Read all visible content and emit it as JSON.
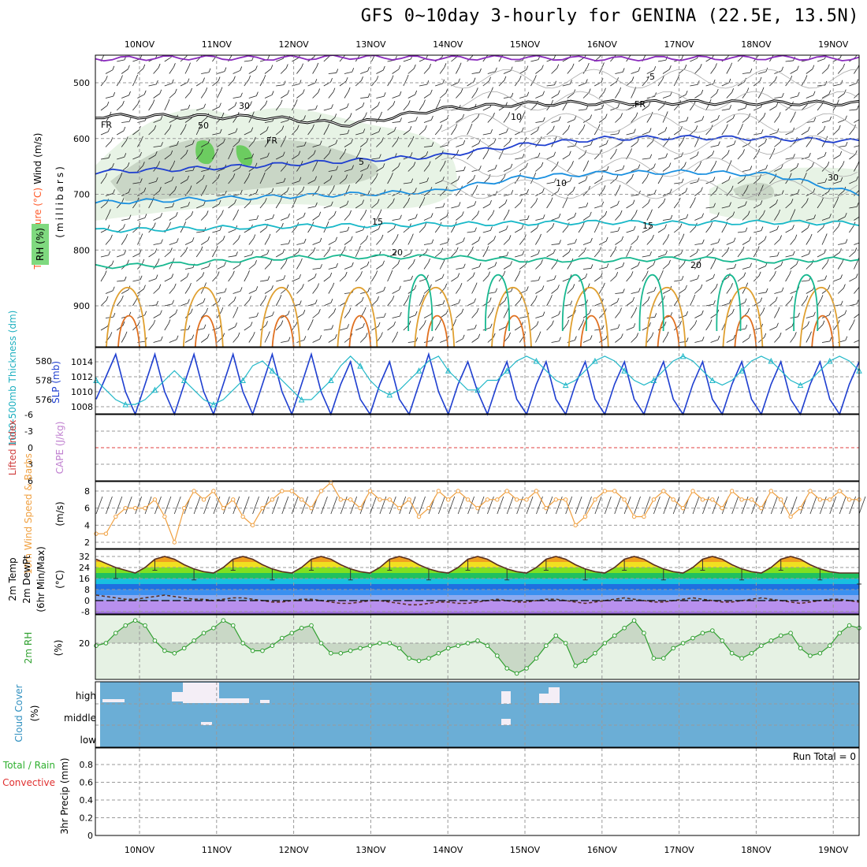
{
  "title": "GFS 0~10day 3-hourly for GENINA (22.5E, 13.5N)",
  "chart_data": {
    "type": "meteogram",
    "dates": [
      "10NOV",
      "11NOV",
      "12NOV",
      "13NOV",
      "14NOV",
      "15NOV",
      "16NOV",
      "17NOV",
      "18NOV",
      "19NOV"
    ],
    "panels": {
      "upper_air": {
        "label_wind": "Wind (m/s)",
        "label_temp": "Temperature (°C)",
        "label_rh": "RH (%)",
        "label_axis": "(millibars)",
        "pressure_ticks": [
          500,
          600,
          700,
          800,
          900
        ],
        "ylim": [
          1000,
          450
        ],
        "isotherm_labels": [
          "-5",
          "5",
          "10",
          "15",
          "20"
        ],
        "freezing_label": "FR",
        "rh_contour_labels": [
          "30",
          "50",
          "10"
        ],
        "isotherms": [
          {
            "value": -5,
            "pressure": [
              457,
              455,
              456,
              454,
              456,
              455,
              457,
              456,
              455,
              457
            ]
          },
          {
            "value": "FR",
            "pressure": [
              560,
              560,
              562,
              575,
              548,
              538,
              536,
              535,
              536,
              537
            ]
          },
          {
            "value": 5,
            "pressure": [
              660,
              655,
              648,
              640,
              632,
              612,
              600,
              598,
              600,
              605
            ]
          },
          {
            "value": 10,
            "pressure": [
              715,
              710,
              705,
              700,
              695,
              670,
              662,
              660,
              665,
              700
            ]
          },
          {
            "value": 15,
            "pressure": [
              765,
              762,
              758,
              756,
              754,
              752,
              750,
              752,
              750,
              752
            ]
          },
          {
            "value": 20,
            "pressure": [
              830,
              825,
              815,
              812,
              812,
              818,
              818,
              815,
              820,
              815
            ]
          }
        ]
      },
      "thickness_slp": {
        "label_thickness": "1000-500mb Thickness (dm)",
        "label_slp": "SLP (mb)",
        "thickness_ticks": [
          576,
          578,
          580
        ],
        "slp_ticks": [
          1008,
          1010,
          1012,
          1014
        ],
        "slp": [
          1009,
          1012,
          1015,
          1010,
          1007,
          1011,
          1015,
          1010,
          1007,
          1011,
          1015,
          1010,
          1007,
          1011,
          1015,
          1010,
          1007,
          1011,
          1015,
          1010,
          1007,
          1011,
          1015,
          1010,
          1007,
          1011,
          1014,
          1009,
          1007,
          1011,
          1014,
          1009,
          1007,
          1011,
          1015,
          1010,
          1007,
          1011,
          1014,
          1010,
          1007,
          1011,
          1014,
          1009,
          1007,
          1011,
          1014,
          1009,
          1007,
          1011,
          1014,
          1009,
          1007,
          1011,
          1014,
          1009,
          1007,
          1011,
          1014,
          1009,
          1007,
          1011,
          1014,
          1009,
          1007,
          1011,
          1014,
          1009,
          1007,
          1011,
          1014,
          1009,
          1007,
          1011,
          1014,
          1009,
          1007,
          1011,
          1014
        ],
        "thickness": [
          578,
          577,
          576,
          575.5,
          575.5,
          576,
          577,
          578,
          579,
          578,
          577,
          576,
          575.5,
          576,
          577,
          578,
          579.5,
          580,
          579,
          578,
          577,
          576,
          576,
          577,
          578,
          579.5,
          580.5,
          579.5,
          578,
          577,
          576.5,
          577,
          578,
          579,
          580,
          580.5,
          579,
          578,
          577,
          577,
          578,
          578,
          579,
          580,
          580.5,
          580,
          579,
          578,
          577.5,
          578,
          579,
          580,
          580.5,
          580,
          579,
          578,
          577.5,
          578,
          579,
          580,
          580.5,
          580,
          579,
          578,
          577.5,
          578,
          579,
          580,
          580.5,
          580,
          579,
          578,
          577.5,
          578,
          579,
          580,
          580.5,
          580,
          579
        ]
      },
      "stability": {
        "label_li": "Lifted Index",
        "label_cape": "CAPE (J/kg)",
        "li_ticks": [
          "-6",
          "-3",
          "0",
          "3",
          "6"
        ]
      },
      "wind10m": {
        "label_speed": "10m Wind Speed & Barbs",
        "label_unit": "(m/s)",
        "ticks": [
          2,
          4,
          6,
          8
        ],
        "speed": [
          3,
          3,
          5,
          6,
          6,
          6,
          7,
          5,
          2,
          6,
          8,
          7,
          8,
          6,
          7,
          5,
          4,
          6,
          7,
          8,
          8,
          7,
          6,
          8,
          9,
          7,
          7,
          6,
          8,
          7,
          7,
          6,
          7,
          5,
          6,
          8,
          7,
          8,
          7,
          6,
          7,
          7,
          8,
          7,
          7,
          8,
          6,
          7,
          7,
          4,
          5,
          7,
          8,
          8,
          7,
          5,
          5,
          7,
          8,
          7,
          6,
          8,
          7,
          7,
          6,
          8,
          7,
          7,
          6,
          8,
          7,
          5,
          6,
          8,
          7,
          7,
          8,
          7,
          7
        ]
      },
      "temp2m": {
        "label_temp": "2m Temp",
        "label_dewpt": "2m DewPt",
        "label_minmax": "(6hr Min/Max)",
        "label_unit": "(°C)",
        "ticks": [
          "32",
          "24",
          "16",
          "8",
          "0",
          "-8"
        ],
        "temp": [
          30,
          27,
          24,
          22,
          20,
          24,
          30,
          32,
          30,
          26,
          23,
          21,
          20,
          24,
          30,
          32,
          30,
          26,
          23,
          21,
          20,
          24,
          30,
          32,
          30,
          26,
          23,
          21,
          20,
          24,
          30,
          32,
          30,
          26,
          23,
          21,
          20,
          24,
          30,
          32,
          30,
          26,
          23,
          21,
          20,
          24,
          30,
          32,
          30,
          26,
          23,
          21,
          20,
          24,
          30,
          32,
          30,
          26,
          23,
          21,
          20,
          24,
          30,
          32,
          30,
          26,
          23,
          21,
          20,
          24,
          30,
          32,
          30,
          26,
          23,
          21,
          20,
          20,
          20
        ],
        "dewpt": [
          4,
          3,
          2,
          1,
          1,
          2,
          3,
          4,
          3,
          2,
          1,
          1,
          0,
          1,
          2,
          2,
          1,
          0,
          -1,
          -1,
          0,
          1,
          1,
          0,
          -1,
          -2,
          -2,
          -1,
          0,
          0,
          -1,
          -2,
          -3,
          -3,
          -2,
          -1,
          -1,
          -2,
          -2,
          -1,
          0,
          1,
          0,
          -1,
          -1,
          0,
          1,
          1,
          0,
          -1,
          -2,
          -1,
          0,
          1,
          2,
          1,
          0,
          -1,
          -1,
          0,
          1,
          2,
          1,
          0,
          -1,
          -1,
          0,
          1,
          2,
          1,
          0,
          -1,
          -2,
          -1,
          0,
          1,
          1,
          0,
          -1
        ]
      },
      "rh2m": {
        "label": "2m RH",
        "label_unit": "(%)",
        "ticks": [
          "20"
        ],
        "values": [
          19,
          20,
          24,
          27,
          29,
          27,
          21,
          17,
          16,
          18,
          21,
          24,
          26,
          29,
          27,
          20,
          17,
          17,
          19,
          22,
          24,
          26,
          27,
          20,
          16,
          16,
          17,
          18,
          19,
          20,
          20,
          18,
          14,
          13,
          14,
          16,
          18,
          19,
          20,
          21,
          19,
          15,
          10,
          8,
          10,
          14,
          19,
          23,
          20,
          11,
          13,
          16,
          20,
          23,
          26,
          29,
          24,
          14,
          14,
          18,
          20,
          22,
          24,
          25,
          21,
          16,
          14,
          16,
          19,
          21,
          23,
          24,
          18,
          15,
          16,
          19,
          24,
          27,
          26
        ]
      },
      "cloud": {
        "label_cover": "Cloud Cover",
        "label_unit": "(%)",
        "levels": [
          "high",
          "middle",
          "low"
        ]
      },
      "precip": {
        "label_total": "Total / Rain",
        "label_conv": "Convective",
        "label_axis": "3hr Precip (mm)",
        "ticks": [
          "0",
          "0.2",
          "0.4",
          "0.6",
          "0.8"
        ],
        "run_total": "Run Total = 0"
      }
    }
  }
}
